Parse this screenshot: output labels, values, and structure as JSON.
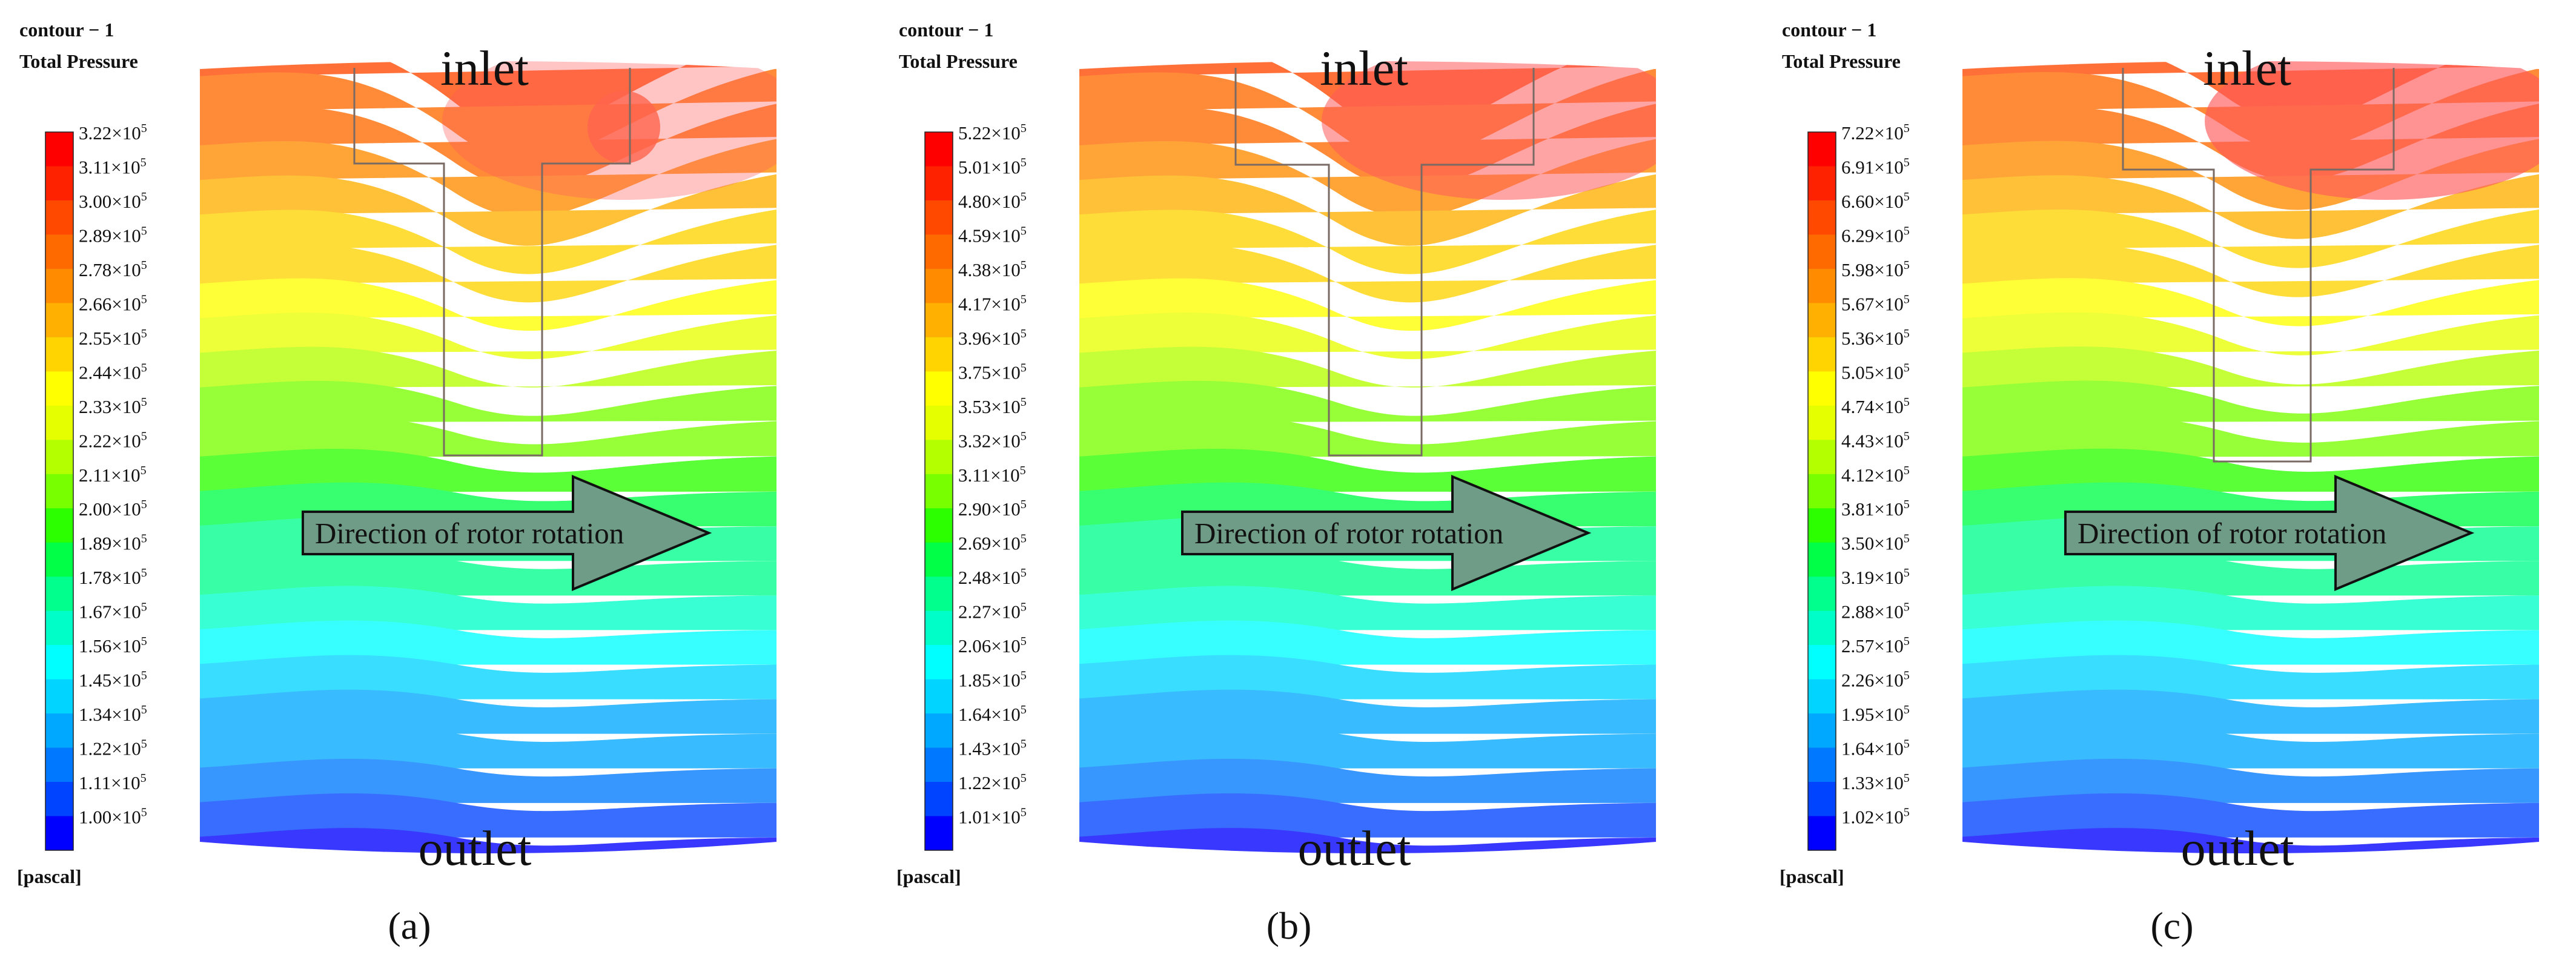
{
  "figure": {
    "panels": [
      {
        "id": "a",
        "contour_title": "contour − 1",
        "variable": "Total Pressure",
        "unit": "[pascal]",
        "legend_ticks": [
          "3.22",
          "3.11",
          "3.00",
          "2.89",
          "2.78",
          "2.66",
          "2.55",
          "2.44",
          "2.33",
          "2.22",
          "2.11",
          "2.00",
          "1.89",
          "1.78",
          "1.67",
          "1.56",
          "1.45",
          "1.34",
          "1.22",
          "1.11",
          "1.00"
        ],
        "exponent_base": "×10",
        "exponent": "5",
        "max_pa": 322000,
        "min_pa": 100000,
        "inlet_label": "inlet",
        "outlet_label": "outlet",
        "arrow_label": "Direction of rotor rotation",
        "caption": "(a)"
      },
      {
        "id": "b",
        "contour_title": "contour − 1",
        "variable": "Total Pressure",
        "unit": "[pascal]",
        "legend_ticks": [
          "5.22",
          "5.01",
          "4.80",
          "4.59",
          "4.38",
          "4.17",
          "3.96",
          "3.75",
          "3.53",
          "3.32",
          "3.11",
          "2.90",
          "2.69",
          "2.48",
          "2.27",
          "2.06",
          "1.85",
          "1.64",
          "1.43",
          "1.22",
          "1.01"
        ],
        "exponent_base": "×10",
        "exponent": "5",
        "max_pa": 522000,
        "min_pa": 101000,
        "inlet_label": "inlet",
        "outlet_label": "outlet",
        "arrow_label": "Direction of rotor rotation",
        "caption": "(b)"
      },
      {
        "id": "c",
        "contour_title": "contour − 1",
        "variable": "Total Pressure",
        "unit": "[pascal]",
        "legend_ticks": [
          "7.22",
          "6.91",
          "6.60",
          "6.29",
          "5.98",
          "5.67",
          "5.36",
          "5.05",
          "4.74",
          "4.43",
          "4.12",
          "3.81",
          "3.50",
          "3.19",
          "2.88",
          "2.57",
          "2.26",
          "1.95",
          "1.64",
          "1.33",
          "1.02"
        ],
        "exponent_base": "×10",
        "exponent": "5",
        "max_pa": 722000,
        "min_pa": 102000,
        "inlet_label": "inlet",
        "outlet_label": "outlet",
        "arrow_label": "Direction of rotor rotation",
        "caption": "(c)"
      }
    ],
    "colormap": [
      "#0000ff",
      "#0044ff",
      "#0078ff",
      "#00a8ff",
      "#00d4ff",
      "#00ffff",
      "#00ffc8",
      "#00ff8c",
      "#00ff46",
      "#2cff00",
      "#78ff00",
      "#b4ff00",
      "#e6ff00",
      "#ffff00",
      "#ffd400",
      "#ffb000",
      "#ff8c00",
      "#ff6a00",
      "#ff4800",
      "#ff2200",
      "#ff0000"
    ],
    "arrow_fill": "#6f9c86"
  }
}
